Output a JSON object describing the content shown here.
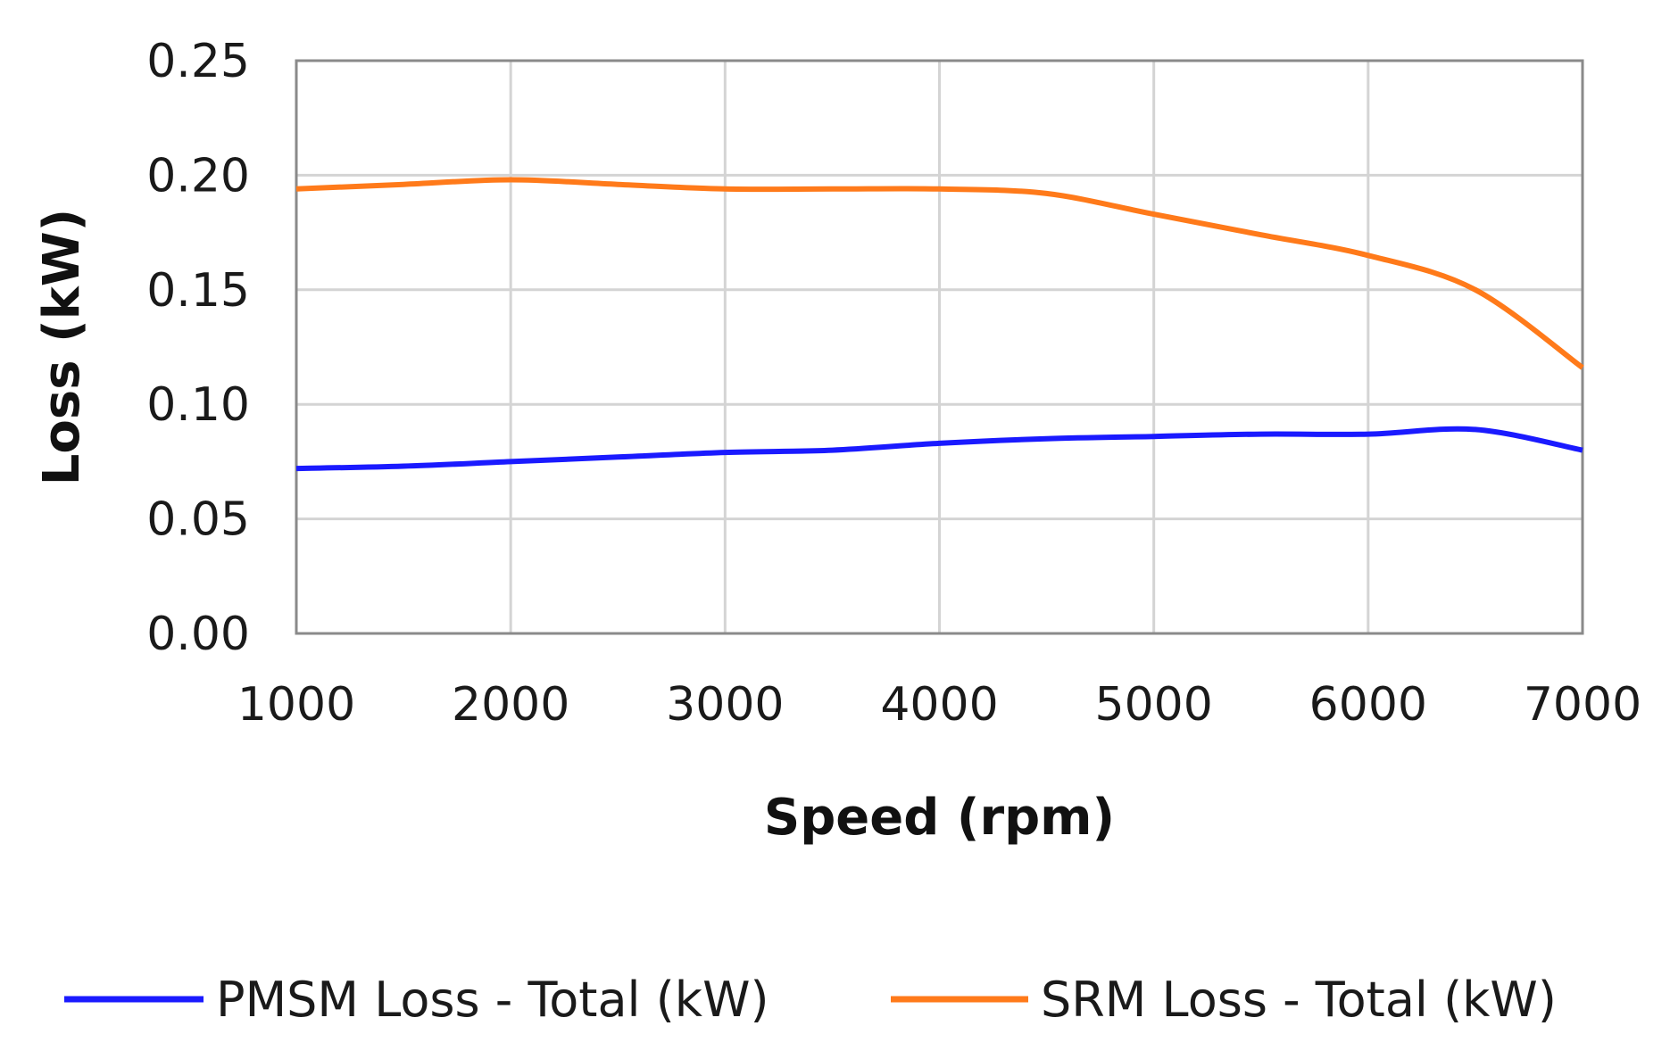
{
  "chart_data": {
    "type": "line",
    "title": "",
    "xlabel": "Speed (rpm)",
    "ylabel": "Loss (kW)",
    "xlim": [
      1000,
      7000
    ],
    "ylim": [
      0,
      0.25
    ],
    "x_ticks": [
      1000,
      2000,
      3000,
      4000,
      5000,
      6000,
      7000
    ],
    "x_tick_labels": [
      "1000",
      "2000",
      "3000",
      "4000",
      "5000",
      "6000",
      "7000"
    ],
    "y_ticks": [
      0,
      0.05,
      0.1,
      0.15,
      0.2,
      0.25
    ],
    "y_tick_labels": [
      "0.00",
      "0.05",
      "0.10",
      "0.15",
      "0.20",
      "0.25"
    ],
    "grid": true,
    "legend_position": "bottom",
    "series": [
      {
        "name": "PMSM Loss - Total (kW)",
        "color": "#1a1aff",
        "x": [
          1000,
          1500,
          2000,
          2500,
          3000,
          3500,
          4000,
          4500,
          5000,
          5500,
          6000,
          6500,
          7000
        ],
        "values": [
          0.072,
          0.073,
          0.075,
          0.077,
          0.079,
          0.08,
          0.083,
          0.085,
          0.086,
          0.087,
          0.087,
          0.089,
          0.08
        ]
      },
      {
        "name": "SRM Loss - Total (kW)",
        "color": "#ff7a1a",
        "x": [
          1000,
          1500,
          2000,
          2500,
          3000,
          3500,
          4000,
          4500,
          5000,
          5500,
          6000,
          6500,
          7000
        ],
        "values": [
          0.194,
          0.196,
          0.198,
          0.196,
          0.194,
          0.194,
          0.194,
          0.192,
          0.183,
          0.174,
          0.165,
          0.15,
          0.116
        ]
      }
    ]
  },
  "colors": {
    "grid": "#d4d4d4",
    "frame": "#8a8a8a",
    "background": "#ffffff"
  }
}
